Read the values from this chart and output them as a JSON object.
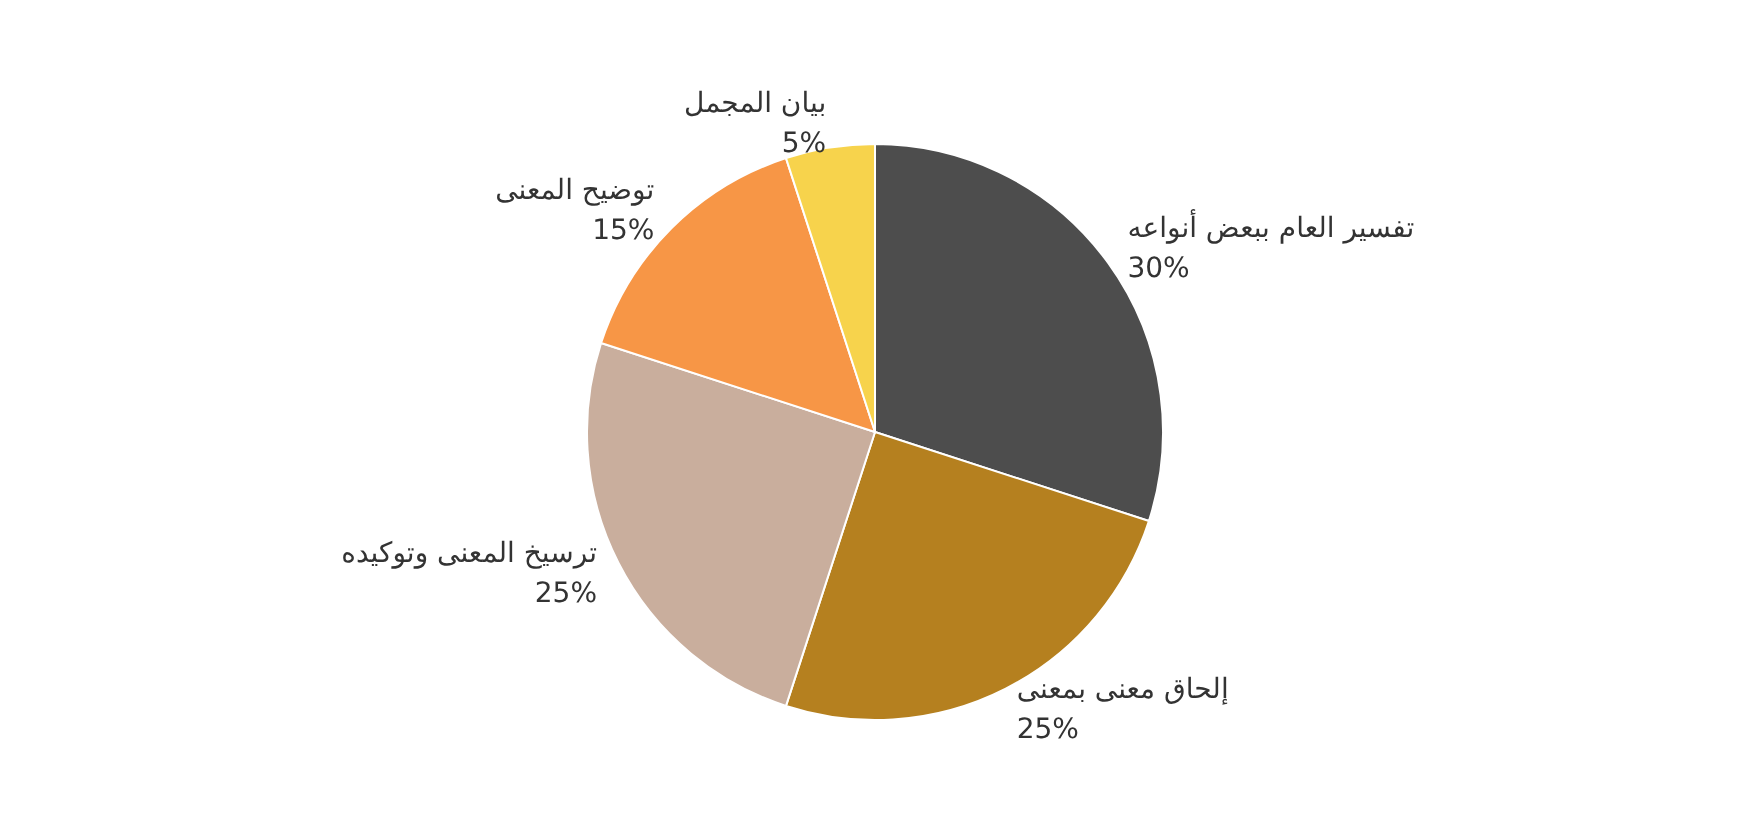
{
  "chart_data": {
    "type": "pie",
    "categories": [
      "تفسير العام ببعض أنواعه",
      "إلحاق معنى بمعنى",
      "ترسيخ المعنى وتوكيده",
      "توضيح المعنى",
      "بيان المجمل"
    ],
    "values": [
      30,
      25,
      25,
      15,
      5
    ],
    "value_labels": [
      "30%",
      "25%",
      "25%",
      "15%",
      "5%"
    ],
    "colors": [
      "#4d4d4d",
      "#b5801f",
      "#c9ae9d",
      "#f79646",
      "#f7d34c"
    ],
    "legend": false
  }
}
